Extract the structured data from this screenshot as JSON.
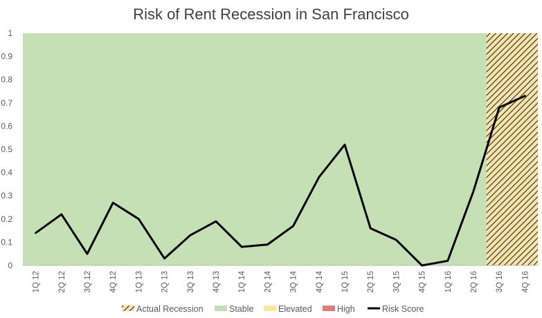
{
  "chart_data": {
    "type": "line",
    "title": "Risk of Rent Recession in San Francisco",
    "xlabel": "",
    "ylabel": "",
    "categories": [
      "1Q 12",
      "2Q 12",
      "3Q 12",
      "4Q 12",
      "1Q 13",
      "2Q 13",
      "3Q 13",
      "4Q 13",
      "1Q 14",
      "2Q 14",
      "3Q 14",
      "4Q 14",
      "1Q 15",
      "2Q 15",
      "3Q 15",
      "4Q 15",
      "1Q 16",
      "2Q 16",
      "3Q 16",
      "4Q 16"
    ],
    "ylim": [
      0,
      1
    ],
    "yticks": [
      "0",
      "0.1",
      "0.2",
      "0.3",
      "0.4",
      "0.5",
      "0.6",
      "0.7",
      "0.8",
      "0.9",
      "1"
    ],
    "series": [
      {
        "name": "Risk Score",
        "values": [
          0.14,
          0.22,
          0.05,
          0.27,
          0.2,
          0.03,
          0.13,
          0.19,
          0.08,
          0.09,
          0.17,
          0.38,
          0.52,
          0.16,
          0.11,
          0.0,
          0.02,
          0.32,
          0.68,
          0.73
        ],
        "color": "#000000"
      }
    ],
    "background_regions": [
      {
        "name": "Stable",
        "from": "1Q 12",
        "to": "2Q 16",
        "color": "#c5e0b4"
      },
      {
        "name": "Actual Recession",
        "from": "3Q 16",
        "to": "4Q 16",
        "color": "#f6e3a6",
        "pattern": "diagonal-hatch"
      }
    ],
    "legend": {
      "position": "bottom",
      "entries": [
        {
          "label": "Actual Recession",
          "swatch": "hatch"
        },
        {
          "label": "Stable",
          "color": "#c5e0b4"
        },
        {
          "label": "Elevated",
          "color": "#ffe699"
        },
        {
          "label": "High",
          "color": "#e07d7d"
        },
        {
          "label": "Risk Score",
          "color": "#000000",
          "swatch": "line"
        }
      ]
    },
    "grid": false
  }
}
